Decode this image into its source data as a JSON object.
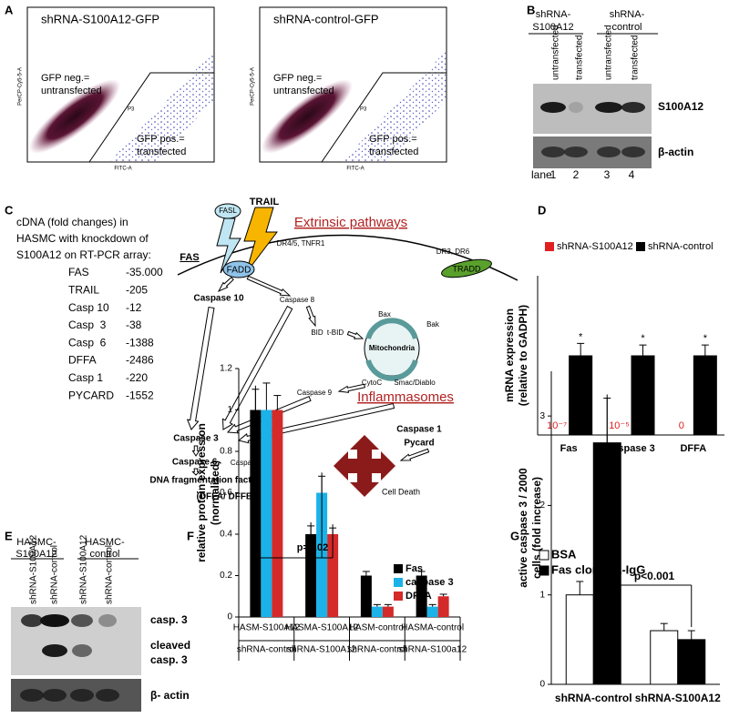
{
  "panel_labels": [
    "A",
    "B",
    "C",
    "D",
    "E",
    "F",
    "G"
  ],
  "flow": {
    "plots": [
      {
        "title": "shRNA-S100A12-GFP",
        "ylabel": "PerCP-Cy5-5-A",
        "xlabel": "FITC-A",
        "neg": [
          "GFP neg.=",
          "untransfected"
        ],
        "pos": [
          "GFP pos.=",
          "transfected"
        ],
        "gate": "P3"
      },
      {
        "title": "shRNA-control-GFP",
        "ylabel": "PerCP-Cy5-5-A",
        "xlabel": "FITC-A",
        "neg": [
          "GFP neg.=",
          "untransfected"
        ],
        "pos": [
          "GFP pos.=",
          "transfected"
        ],
        "gate": "P3"
      }
    ]
  },
  "blot_b": {
    "groups": [
      [
        "shRNA-",
        "S100A12"
      ],
      [
        "shRNA-",
        "control"
      ]
    ],
    "lanes": [
      "untransfected",
      "transfected",
      "untransfected",
      "transfected"
    ],
    "bands": [
      "S100A12",
      "β-actin"
    ],
    "lane_label": "lane",
    "lane_numbers": [
      "1",
      "2",
      "3",
      "4"
    ]
  },
  "array": {
    "header": [
      "cDNA (fold changes) in",
      "HASMC with knockdown of",
      "S100A12 on RT-PCR array:"
    ],
    "rows": [
      [
        "FAS",
        "-35.000"
      ],
      [
        "TRAIL",
        "-205"
      ],
      [
        "Casp 10",
        "-12"
      ],
      [
        "Casp  3",
        "-38"
      ],
      [
        "Casp  6",
        "-1388"
      ],
      [
        "DFFA",
        "-2486"
      ],
      [
        "Casp 1",
        "-220"
      ],
      [
        "PYCARD",
        "-1552"
      ]
    ]
  },
  "pathway": {
    "nodes": [
      {
        "label": "FASL"
      },
      {
        "label": "TRAIL"
      },
      {
        "label": "Extrinsic pathways"
      },
      {
        "label": "FAS"
      },
      {
        "label": "DR4/5, TNFR1"
      },
      {
        "label": "FADD"
      },
      {
        "label": "DR3, DR6"
      },
      {
        "label": "TRADD"
      },
      {
        "label": "Caspase 10"
      },
      {
        "label": "Caspase 8"
      },
      {
        "label": "BID"
      },
      {
        "label": "t-BID"
      },
      {
        "label": "Bax"
      },
      {
        "label": "Bak"
      },
      {
        "label": "Mitochondria"
      },
      {
        "label": "CytoC"
      },
      {
        "label": "Smac/Diablo"
      },
      {
        "label": "Caspase 9"
      },
      {
        "label": "Inflammasomes"
      },
      {
        "label": "Caspase 3"
      },
      {
        "label": "Caspase 6,"
      },
      {
        "label": "Caspase 7"
      },
      {
        "label": "Caspase 1"
      },
      {
        "label": "Pycard"
      },
      {
        "label": "DNA fragmentation factor"
      },
      {
        "label": "(DFFA/ DFFB)"
      },
      {
        "label": "Cell Death"
      }
    ]
  },
  "blot_e": {
    "groups": [
      [
        "HASMC-",
        "S100A12"
      ],
      [
        "HASMC-",
        "control"
      ]
    ],
    "lanes": [
      "shRNA-S100A12",
      "shRNA-control",
      "shRNA-S100A12",
      "shRNA-control"
    ],
    "bands": [
      "casp. 3",
      "cleaved",
      "casp. 3",
      "β- actin"
    ]
  },
  "chart_data": [
    {
      "type": "bar",
      "ylabel": [
        "mRNA expression",
        "(relative to GADPH)"
      ],
      "categories": [
        "Fas",
        "caspase 3",
        "DFFA"
      ],
      "ylim": [
        0,
        2
      ],
      "series": [
        {
          "name": "shRNA-S100A12",
          "color": "#e02020",
          "values": [
            1e-07,
            1e-05,
            0
          ],
          "value_labels": [
            "10⁻⁷",
            "10⁻⁵",
            "0"
          ]
        },
        {
          "name": "shRNA-control",
          "color": "#000000",
          "values": [
            1,
            1,
            1
          ],
          "errors": [
            0.15,
            0.13,
            0.13
          ]
        }
      ],
      "annotations": [
        "*",
        "*",
        "*"
      ]
    },
    {
      "type": "bar",
      "ylabel": [
        "relative protein expression",
        "(normalized)"
      ],
      "categories": [
        [
          "HASM-S100A12",
          "shRNA-control"
        ],
        [
          "HASMA-S100A12",
          "shRNA-S100A12"
        ],
        [
          "HASM-control",
          "shRNA-control"
        ],
        [
          "HASMA-control",
          "shRNA-S100a12"
        ]
      ],
      "ylim": [
        0,
        1.2
      ],
      "yticks": [
        0,
        0.2,
        0.4,
        0.6,
        0.8,
        1,
        1.2
      ],
      "series": [
        {
          "name": "Fas",
          "color": "#000000",
          "values": [
            1,
            0.4,
            0.2,
            0.2
          ],
          "errors": [
            0.1,
            0.04,
            0.02,
            0.02
          ]
        },
        {
          "name": "caspase 3",
          "color": "#1ab2e8",
          "values": [
            1,
            0.6,
            0.05,
            0.05
          ],
          "errors": [
            0.13,
            0.08,
            0.01,
            0.01
          ]
        },
        {
          "name": "DFFA",
          "color": "#d42a2a",
          "values": [
            1,
            0.4,
            0.05,
            0.1
          ],
          "errors": [
            0.07,
            0.03,
            0.01,
            0.01
          ]
        }
      ],
      "annotation": "p=0.02"
    },
    {
      "type": "bar",
      "ylabel": [
        "active caspase 3 / 2000",
        "cells (fold increase)"
      ],
      "categories": [
        "shRNA-control",
        "shRNA-S100A12"
      ],
      "ylim": [
        0,
        3.5
      ],
      "yticks": [
        0,
        1,
        2,
        3
      ],
      "series": [
        {
          "name": "BSA",
          "color": "#ffffff",
          "values": [
            1,
            0.6
          ],
          "errors": [
            0.15,
            0.08
          ]
        },
        {
          "name": "Fas clone 11-IgG",
          "color": "#000000",
          "values": [
            2.7,
            0.5
          ],
          "errors": [
            0.5,
            0.1
          ]
        }
      ],
      "annotation": "p<0.001"
    }
  ]
}
